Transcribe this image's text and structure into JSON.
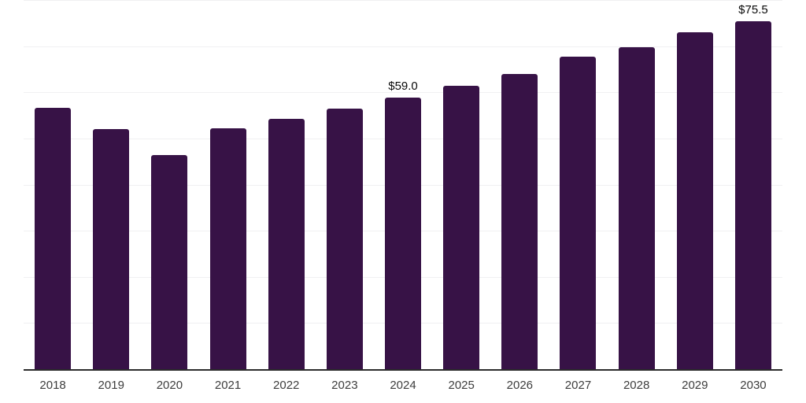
{
  "chart_data": {
    "type": "bar",
    "title": "",
    "xlabel": "",
    "ylabel": "",
    "categories": [
      "2018",
      "2019",
      "2020",
      "2021",
      "2022",
      "2023",
      "2024",
      "2025",
      "2026",
      "2027",
      "2028",
      "2029",
      "2030"
    ],
    "values": [
      56.8,
      52.2,
      46.5,
      52.4,
      54.5,
      56.7,
      59.0,
      61.6,
      64.2,
      67.9,
      69.9,
      73.1,
      75.5
    ],
    "data_labels": {
      "2024": "$59.0",
      "2030": "$75.5"
    },
    "ylim": [
      0,
      80
    ],
    "gridline_interval": 10,
    "grid": "horizontal",
    "legend": "none",
    "y_axis_ticks_visible": false,
    "colors": {
      "bar": "#371246",
      "gridline": "#f0f0f2",
      "axis_line": "#2b2b2b",
      "value_label": "#0a0a0a",
      "tick_label": "#3d3d3d",
      "background": "#ffffff"
    }
  }
}
